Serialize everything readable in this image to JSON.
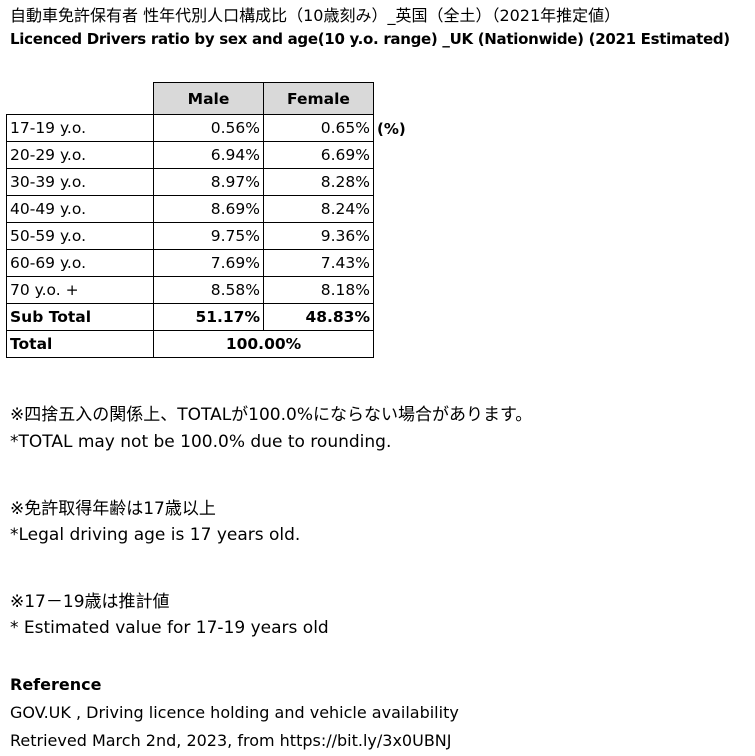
{
  "title_jp": "自動車免許保有者 性年代別人口構成比（10歳刻み）_英国（全土）（2021年推定値）",
  "title_en": "Licenced Drivers ratio by sex and age(10 y.o. range) _UK (Nationwide) (2021 Estimated)",
  "table": {
    "headers": [
      "",
      "Male",
      "Female"
    ],
    "unit": "(%)",
    "rows": [
      {
        "label": "17-19 y.o.",
        "male": "0.56%",
        "female": "0.65%"
      },
      {
        "label": "20-29 y.o.",
        "male": "6.94%",
        "female": "6.69%"
      },
      {
        "label": "30-39 y.o.",
        "male": "8.97%",
        "female": "8.28%"
      },
      {
        "label": "40-49 y.o.",
        "male": "8.69%",
        "female": "8.24%"
      },
      {
        "label": "50-59 y.o.",
        "male": "9.75%",
        "female": "9.36%"
      },
      {
        "label": "60-69 y.o.",
        "male": "7.69%",
        "female": "7.43%"
      },
      {
        "label": "70 y.o. +",
        "male": "8.58%",
        "female": "8.18%"
      }
    ],
    "subtotal": {
      "label": "Sub Total",
      "male": "51.17%",
      "female": "48.83%"
    },
    "total": {
      "label": "Total",
      "value": "100.00%"
    }
  },
  "notes": {
    "rounding_jp": "※四捨五入の関係上、TOTALが100.0%にならない場合があります。",
    "rounding_en": "*TOTAL may not be 100.0% due to rounding.",
    "age_jp": "※免許取得年齢は17歳以上",
    "age_en": "*Legal driving age is 17 years old.",
    "est_jp": "※17－19歳は推計値",
    "est_en": "* Estimated value for 17-19 years old"
  },
  "reference": {
    "heading": "Reference",
    "source": "GOV.UK , Driving licence holding and vehicle availability",
    "retrieved": "Retrieved March 2nd, 2023, from  https://bit.ly/3x0UBNJ"
  }
}
